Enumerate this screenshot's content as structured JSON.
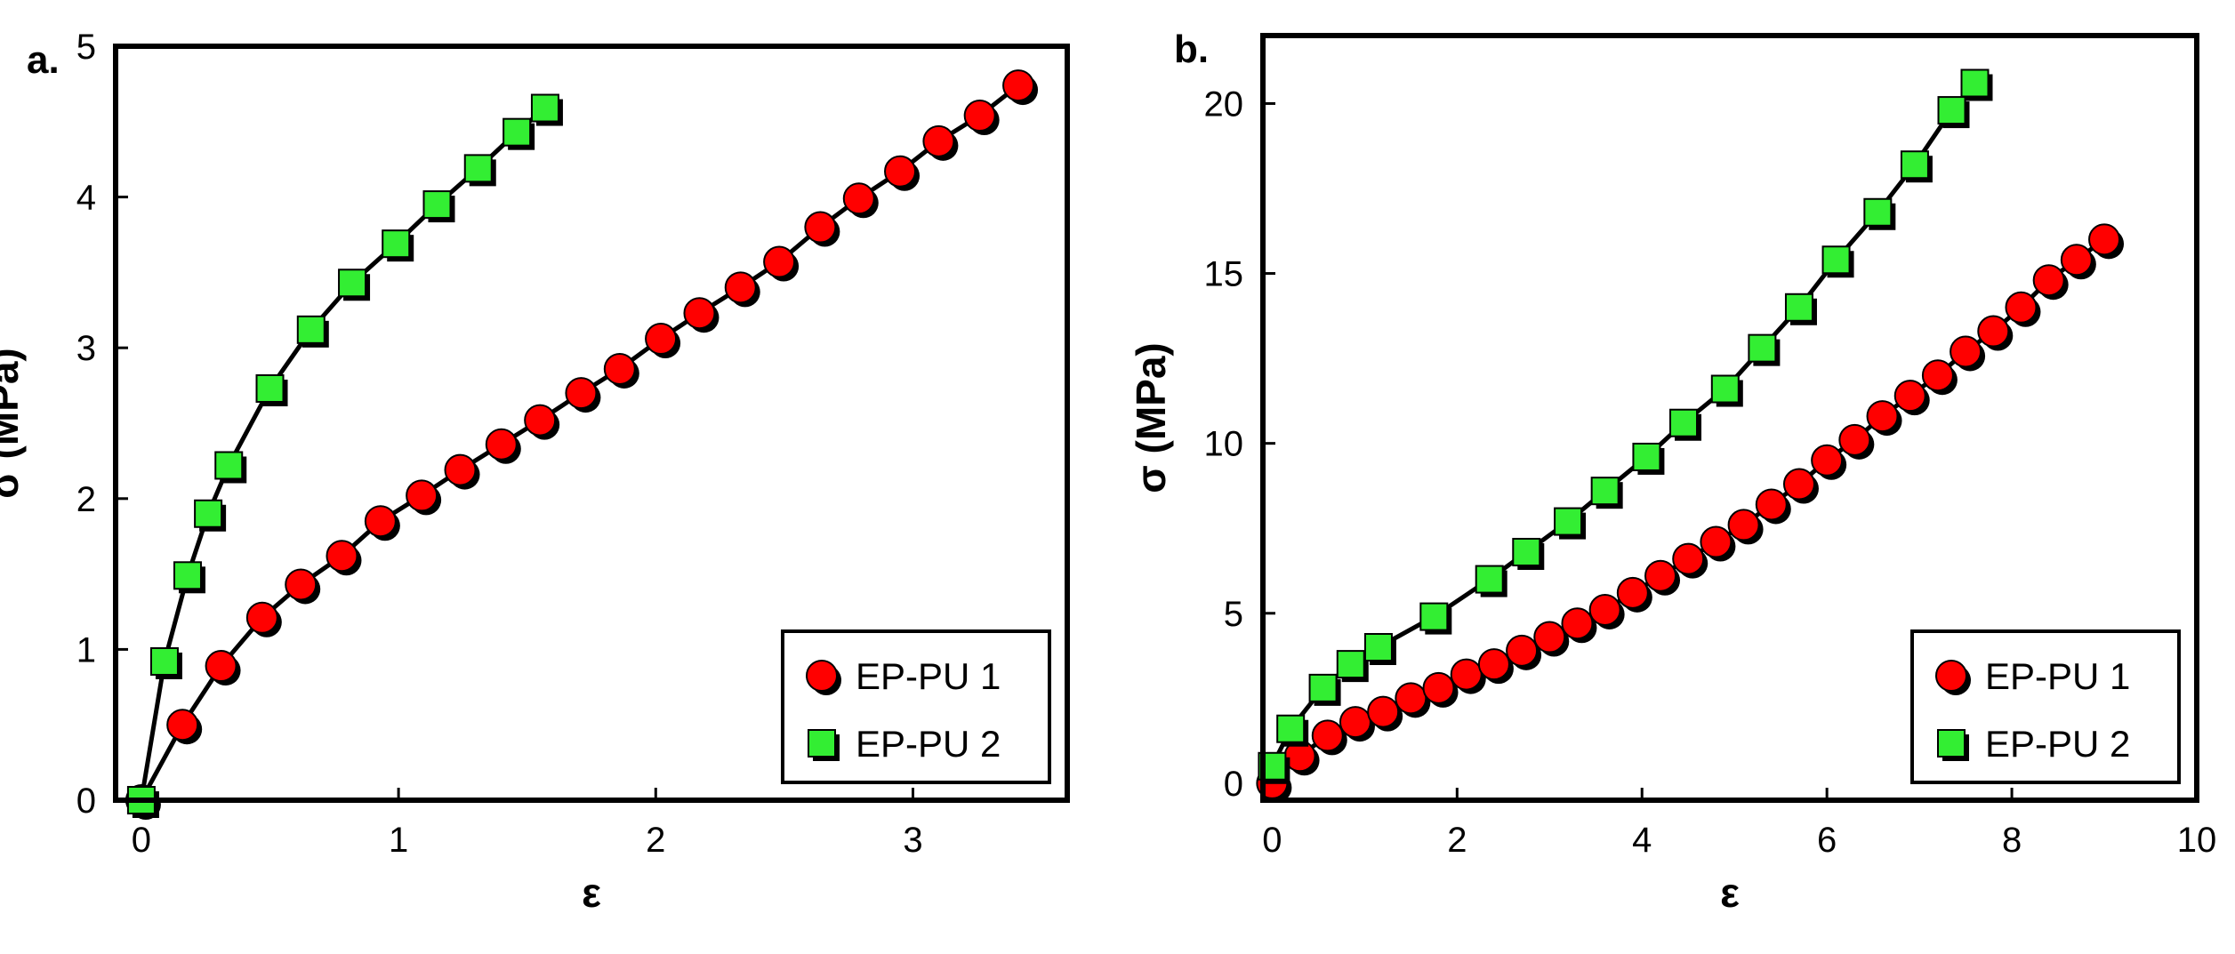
{
  "chart_data": [
    {
      "type": "scatter",
      "panel": "a.",
      "xlabel": "ε",
      "ylabel": "σ (MPa)",
      "xlim": [
        -0.1,
        3.6
      ],
      "ylim": [
        0,
        5
      ],
      "xticks": [
        0,
        1,
        2,
        3
      ],
      "yticks": [
        0,
        1,
        2,
        3,
        4,
        5
      ],
      "legend_position": "bottom-right",
      "series": [
        {
          "name": "EP-PU 1",
          "marker": "circle",
          "color": "#ff0000",
          "x": [
            0,
            0.16,
            0.31,
            0.47,
            0.62,
            0.78,
            0.93,
            1.09,
            1.24,
            1.4,
            1.55,
            1.71,
            1.86,
            2.02,
            2.17,
            2.33,
            2.48,
            2.64,
            2.79,
            2.95,
            3.1,
            3.26,
            3.41
          ],
          "y": [
            0,
            0.5,
            0.89,
            1.21,
            1.43,
            1.62,
            1.85,
            2.02,
            2.19,
            2.36,
            2.52,
            2.7,
            2.86,
            3.06,
            3.23,
            3.4,
            3.57,
            3.8,
            3.99,
            4.17,
            4.37,
            4.54,
            4.74
          ]
        },
        {
          "name": "EP-PU 2",
          "marker": "square",
          "color": "#33ee33",
          "x": [
            0,
            0.09,
            0.18,
            0.26,
            0.34,
            0.5,
            0.66,
            0.82,
            0.99,
            1.15,
            1.31,
            1.46,
            1.57
          ],
          "y": [
            0,
            0.92,
            1.49,
            1.9,
            2.22,
            2.73,
            3.12,
            3.43,
            3.69,
            3.95,
            4.19,
            4.43,
            4.59
          ]
        }
      ]
    },
    {
      "type": "scatter",
      "panel": "b.",
      "xlabel": "ε",
      "ylabel": "σ (MPa)",
      "xlim": [
        -0.1,
        10
      ],
      "ylim": [
        -0.5,
        22
      ],
      "xticks": [
        0,
        2,
        4,
        6,
        8,
        10
      ],
      "yticks": [
        0,
        5,
        10,
        15,
        20
      ],
      "legend_position": "bottom-right",
      "series": [
        {
          "name": "EP-PU 1",
          "marker": "circle",
          "color": "#ff0000",
          "x": [
            0,
            0.3,
            0.6,
            0.9,
            1.2,
            1.5,
            1.8,
            2.1,
            2.4,
            2.7,
            3.0,
            3.3,
            3.6,
            3.9,
            4.2,
            4.5,
            4.8,
            5.1,
            5.4,
            5.7,
            6.0,
            6.3,
            6.6,
            6.9,
            7.2,
            7.5,
            7.8,
            8.1,
            8.4,
            8.7,
            9.0
          ],
          "y": [
            0,
            0.8,
            1.4,
            1.8,
            2.1,
            2.5,
            2.8,
            3.2,
            3.5,
            3.9,
            4.3,
            4.7,
            5.1,
            5.6,
            6.1,
            6.6,
            7.1,
            7.6,
            8.2,
            8.8,
            9.5,
            10.1,
            10.8,
            11.4,
            12.0,
            12.7,
            13.3,
            14.0,
            14.8,
            15.4,
            16.0
          ]
        },
        {
          "name": "EP-PU 2",
          "marker": "square",
          "color": "#33ee33",
          "x": [
            0,
            0.2,
            0.55,
            0.85,
            1.15,
            1.75,
            2.35,
            2.75,
            3.2,
            3.6,
            4.05,
            4.45,
            4.9,
            5.3,
            5.7,
            6.1,
            6.55,
            6.95,
            7.35,
            7.6
          ],
          "y": [
            0.5,
            1.6,
            2.8,
            3.5,
            4.0,
            4.9,
            6.0,
            6.8,
            7.7,
            8.6,
            9.6,
            10.6,
            11.6,
            12.8,
            14.0,
            15.4,
            16.8,
            18.2,
            19.8,
            20.6
          ]
        }
      ]
    }
  ]
}
